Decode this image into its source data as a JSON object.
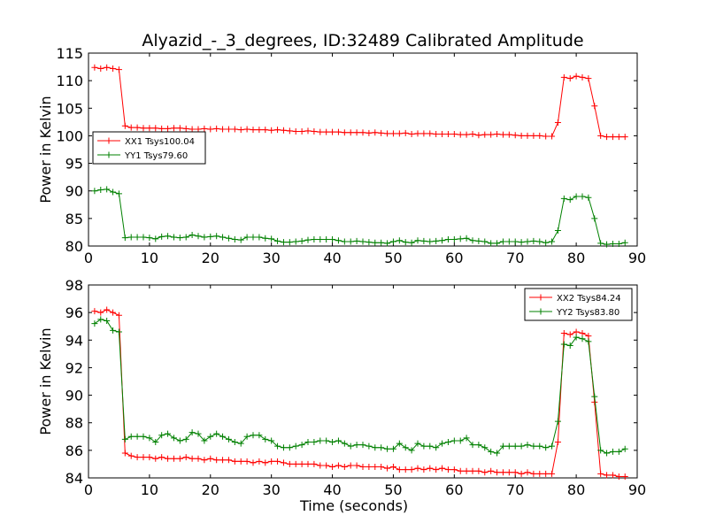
{
  "chart_data": [
    {
      "type": "line",
      "title": "Alyazid_-_3_degrees, ID:32489 Calibrated Amplitude",
      "xlabel": "",
      "ylabel": "Power in Kelvin",
      "xlim": [
        0,
        90
      ],
      "ylim": [
        80,
        115
      ],
      "xticks": [
        0,
        10,
        20,
        30,
        40,
        50,
        60,
        70,
        80,
        90
      ],
      "yticks": [
        80,
        85,
        90,
        95,
        100,
        105,
        110,
        115
      ],
      "grid": false,
      "legend": "center-left",
      "x": [
        1,
        2,
        3,
        4,
        5,
        6,
        7,
        8,
        9,
        10,
        11,
        12,
        13,
        14,
        15,
        16,
        17,
        18,
        19,
        20,
        21,
        22,
        23,
        24,
        25,
        26,
        27,
        28,
        29,
        30,
        31,
        32,
        33,
        34,
        35,
        36,
        37,
        38,
        39,
        40,
        41,
        42,
        43,
        44,
        45,
        46,
        47,
        48,
        49,
        50,
        51,
        52,
        53,
        54,
        55,
        56,
        57,
        58,
        59,
        60,
        61,
        62,
        63,
        64,
        65,
        66,
        67,
        68,
        69,
        70,
        71,
        72,
        73,
        74,
        75,
        76,
        77,
        78,
        79,
        80,
        81,
        82,
        83,
        84,
        85,
        86,
        87,
        88
      ],
      "series": [
        {
          "name": "XX1 Tsys100.04",
          "color": "#ff0000",
          "values": [
            112.4,
            112.2,
            112.4,
            112.2,
            112.0,
            101.8,
            101.5,
            101.5,
            101.4,
            101.4,
            101.4,
            101.3,
            101.3,
            101.4,
            101.4,
            101.3,
            101.2,
            101.2,
            101.3,
            101.2,
            101.3,
            101.2,
            101.2,
            101.2,
            101.1,
            101.2,
            101.1,
            101.1,
            101.1,
            101.0,
            101.1,
            101.0,
            100.9,
            100.8,
            100.8,
            100.9,
            100.8,
            100.7,
            100.7,
            100.7,
            100.7,
            100.6,
            100.6,
            100.6,
            100.6,
            100.5,
            100.6,
            100.5,
            100.4,
            100.4,
            100.4,
            100.5,
            100.3,
            100.4,
            100.4,
            100.4,
            100.3,
            100.3,
            100.3,
            100.3,
            100.2,
            100.2,
            100.3,
            100.1,
            100.2,
            100.2,
            100.3,
            100.2,
            100.2,
            100.1,
            100.0,
            100.0,
            100.0,
            100.0,
            99.9,
            99.9,
            102.4,
            110.6,
            110.4,
            110.8,
            110.6,
            110.4,
            105.4,
            100.0,
            99.8,
            99.8,
            99.8,
            99.8
          ]
        },
        {
          "name": "YY1 Tsys79.60",
          "color": "#008000",
          "values": [
            90.0,
            90.2,
            90.3,
            89.8,
            89.5,
            81.5,
            81.6,
            81.6,
            81.6,
            81.5,
            81.3,
            81.7,
            81.8,
            81.6,
            81.5,
            81.6,
            82.0,
            81.8,
            81.6,
            81.7,
            81.8,
            81.6,
            81.4,
            81.2,
            81.1,
            81.6,
            81.6,
            81.6,
            81.4,
            81.3,
            80.9,
            80.7,
            80.7,
            80.8,
            80.9,
            81.1,
            81.2,
            81.2,
            81.2,
            81.2,
            81.0,
            80.8,
            80.8,
            80.9,
            80.8,
            80.7,
            80.6,
            80.6,
            80.5,
            80.8,
            81.0,
            80.7,
            80.6,
            81.0,
            80.9,
            80.8,
            80.9,
            81.0,
            81.2,
            81.2,
            81.3,
            81.4,
            81.0,
            80.9,
            80.8,
            80.5,
            80.5,
            80.8,
            80.8,
            80.8,
            80.7,
            80.8,
            80.9,
            80.8,
            80.6,
            80.8,
            82.8,
            88.6,
            88.4,
            89.0,
            89.0,
            88.8,
            85.0,
            80.5,
            80.3,
            80.4,
            80.4,
            80.6
          ]
        }
      ]
    },
    {
      "type": "line",
      "title": "",
      "xlabel": "Time (seconds)",
      "ylabel": "Power in Kelvin",
      "xlim": [
        0,
        90
      ],
      "ylim": [
        84,
        98
      ],
      "xticks": [
        0,
        10,
        20,
        30,
        40,
        50,
        60,
        70,
        80,
        90
      ],
      "yticks": [
        84,
        86,
        88,
        90,
        92,
        94,
        96,
        98
      ],
      "grid": false,
      "legend": "top-right",
      "x": [
        1,
        2,
        3,
        4,
        5,
        6,
        7,
        8,
        9,
        10,
        11,
        12,
        13,
        14,
        15,
        16,
        17,
        18,
        19,
        20,
        21,
        22,
        23,
        24,
        25,
        26,
        27,
        28,
        29,
        30,
        31,
        32,
        33,
        34,
        35,
        36,
        37,
        38,
        39,
        40,
        41,
        42,
        43,
        44,
        45,
        46,
        47,
        48,
        49,
        50,
        51,
        52,
        53,
        54,
        55,
        56,
        57,
        58,
        59,
        60,
        61,
        62,
        63,
        64,
        65,
        66,
        67,
        68,
        69,
        70,
        71,
        72,
        73,
        74,
        75,
        76,
        77,
        78,
        79,
        80,
        81,
        82,
        83,
        84,
        85,
        86,
        87,
        88
      ],
      "series": [
        {
          "name": "XX2 Tsys84.24",
          "color": "#ff0000",
          "values": [
            96.1,
            96.0,
            96.2,
            96.0,
            95.8,
            85.8,
            85.6,
            85.5,
            85.5,
            85.5,
            85.4,
            85.5,
            85.4,
            85.4,
            85.4,
            85.5,
            85.4,
            85.4,
            85.3,
            85.4,
            85.3,
            85.3,
            85.3,
            85.2,
            85.2,
            85.2,
            85.1,
            85.2,
            85.1,
            85.2,
            85.2,
            85.1,
            85.0,
            85.0,
            85.0,
            85.0,
            85.0,
            84.9,
            84.9,
            84.8,
            84.9,
            84.8,
            84.9,
            84.9,
            84.8,
            84.8,
            84.8,
            84.8,
            84.7,
            84.8,
            84.6,
            84.6,
            84.6,
            84.7,
            84.6,
            84.7,
            84.6,
            84.7,
            84.6,
            84.6,
            84.5,
            84.5,
            84.5,
            84.5,
            84.4,
            84.5,
            84.4,
            84.4,
            84.4,
            84.4,
            84.3,
            84.4,
            84.3,
            84.3,
            84.3,
            84.3,
            86.6,
            94.5,
            94.4,
            94.6,
            94.5,
            94.3,
            89.5,
            84.3,
            84.2,
            84.2,
            84.1,
            84.1
          ]
        },
        {
          "name": "YY2 Tsys83.80",
          "color": "#008000",
          "values": [
            95.2,
            95.5,
            95.4,
            94.7,
            94.6,
            86.8,
            87.0,
            87.0,
            87.0,
            86.9,
            86.6,
            87.1,
            87.2,
            86.9,
            86.7,
            86.8,
            87.3,
            87.2,
            86.7,
            87.0,
            87.2,
            87.0,
            86.8,
            86.6,
            86.5,
            87.0,
            87.1,
            87.1,
            86.8,
            86.7,
            86.3,
            86.2,
            86.2,
            86.3,
            86.4,
            86.6,
            86.6,
            86.7,
            86.7,
            86.6,
            86.7,
            86.5,
            86.3,
            86.4,
            86.4,
            86.3,
            86.2,
            86.2,
            86.1,
            86.1,
            86.5,
            86.2,
            86.0,
            86.5,
            86.3,
            86.3,
            86.2,
            86.5,
            86.6,
            86.7,
            86.7,
            86.9,
            86.4,
            86.4,
            86.2,
            85.9,
            85.8,
            86.3,
            86.3,
            86.3,
            86.3,
            86.4,
            86.3,
            86.3,
            86.2,
            86.3,
            88.1,
            93.7,
            93.6,
            94.2,
            94.1,
            93.9,
            89.9,
            86.0,
            85.8,
            85.9,
            85.9,
            86.1
          ]
        }
      ]
    }
  ]
}
